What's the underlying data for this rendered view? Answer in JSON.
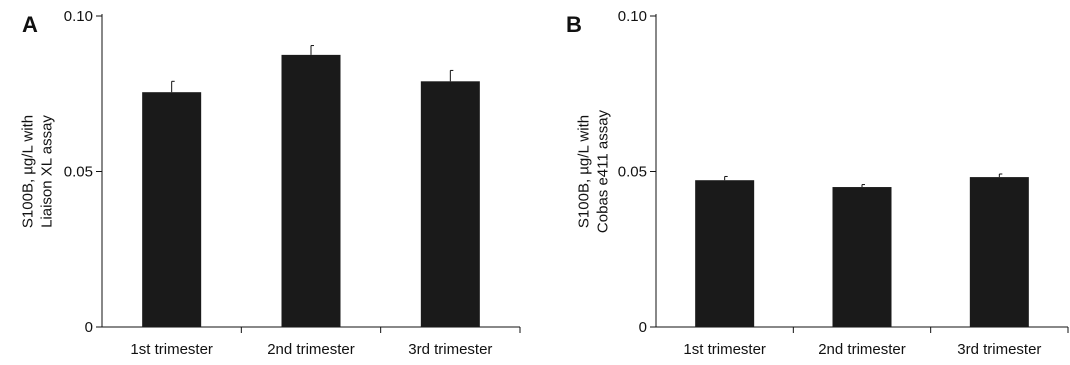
{
  "chart_data": [
    {
      "type": "bar",
      "panel_label": "A",
      "categories": [
        "1st trimester",
        "2nd trimester",
        "3rd trimester"
      ],
      "values": [
        0.0755,
        0.0875,
        0.079
      ],
      "error_up": [
        0.0035,
        0.003,
        0.0035
      ],
      "ylabel_lines": [
        "S100B, µg/L with",
        "Liaison XL assay"
      ],
      "ylim": [
        0,
        0.1
      ],
      "yticks": [
        0,
        0.05,
        0.1
      ],
      "ytick_labels": [
        "0",
        "0.05",
        "0.10"
      ],
      "bar_color": "#1a1a1a",
      "grid": false
    },
    {
      "type": "bar",
      "panel_label": "B",
      "categories": [
        "1st trimester",
        "2nd trimester",
        "3rd trimester"
      ],
      "values": [
        0.0472,
        0.045,
        0.0482
      ],
      "error_up": [
        0.0012,
        0.0008,
        0.001
      ],
      "ylabel_lines": [
        "S100B, µg/L with",
        "Cobas e411 assay"
      ],
      "ylim": [
        0,
        0.1
      ],
      "yticks": [
        0,
        0.05,
        0.1
      ],
      "ytick_labels": [
        "0",
        "0.05",
        "0.10"
      ],
      "bar_color": "#1a1a1a",
      "grid": false
    }
  ]
}
